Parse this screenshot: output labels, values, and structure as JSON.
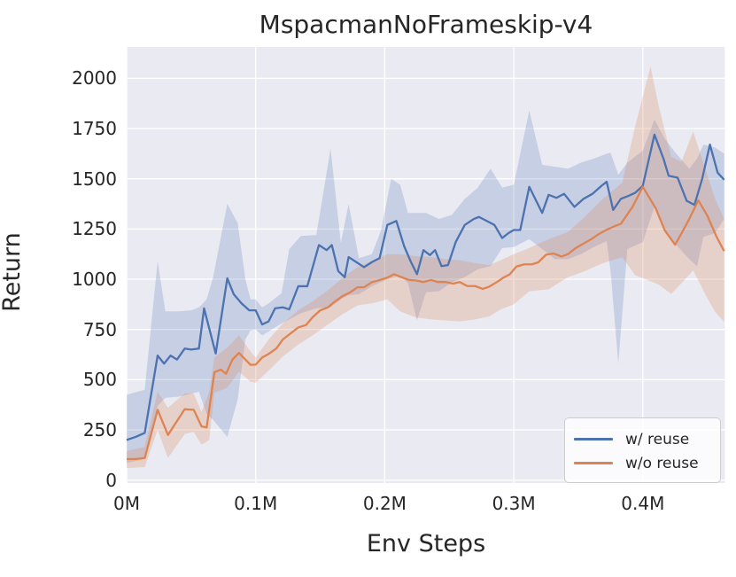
{
  "figure": {
    "title": "MspacmanNoFrameskip-v4",
    "xlabel": "Env Steps",
    "ylabel": "Return"
  },
  "chart_data": {
    "type": "line",
    "title": "MspacmanNoFrameskip-v4",
    "xlabel": "Env Steps",
    "ylabel": "Return",
    "x_unit": "millions of env steps",
    "xlim": [
      0,
      0.4634
    ],
    "ylim": [
      -15,
      2155
    ],
    "grid": true,
    "background": "#eaeaf2",
    "grid_color": "#ffffff",
    "legend_position": "lower right",
    "x_ticks": [
      0,
      0.1,
      0.2,
      0.3,
      0.4
    ],
    "x_tick_labels": [
      "0M",
      "0.1M",
      "0.2M",
      "0.3M",
      "0.4M"
    ],
    "y_ticks": [
      0,
      250,
      500,
      750,
      1000,
      1250,
      1500,
      1750,
      2000
    ],
    "y_tick_labels": [
      "0",
      "250",
      "500",
      "750",
      "1000",
      "1250",
      "1500",
      "1750",
      "2000"
    ],
    "series": [
      {
        "name": "w/ reuse",
        "color": "#4c72b0",
        "band_alpha": 0.22,
        "x": [
          0.0,
          0.007,
          0.014,
          0.024,
          0.029,
          0.034,
          0.039,
          0.045,
          0.05,
          0.056,
          0.06,
          0.069,
          0.078,
          0.083,
          0.089,
          0.095,
          0.1,
          0.105,
          0.11,
          0.115,
          0.121,
          0.126,
          0.133,
          0.14,
          0.149,
          0.155,
          0.159,
          0.164,
          0.169,
          0.172,
          0.178,
          0.184,
          0.19,
          0.196,
          0.202,
          0.209,
          0.215,
          0.22,
          0.225,
          0.23,
          0.235,
          0.239,
          0.244,
          0.249,
          0.255,
          0.262,
          0.269,
          0.273,
          0.279,
          0.285,
          0.291,
          0.296,
          0.3,
          0.305,
          0.312,
          0.322,
          0.327,
          0.333,
          0.339,
          0.347,
          0.354,
          0.361,
          0.368,
          0.372,
          0.377,
          0.383,
          0.389,
          0.394,
          0.4,
          0.409,
          0.416,
          0.42,
          0.427,
          0.434,
          0.44,
          0.446,
          0.452,
          0.458,
          0.463
        ],
        "y": [
          200,
          215,
          235,
          620,
          580,
          620,
          600,
          655,
          650,
          655,
          855,
          630,
          1005,
          925,
          880,
          845,
          845,
          775,
          790,
          855,
          860,
          850,
          965,
          965,
          1170,
          1145,
          1170,
          1040,
          1010,
          1110,
          1085,
          1060,
          1085,
          1105,
          1270,
          1290,
          1165,
          1090,
          1025,
          1145,
          1120,
          1145,
          1065,
          1070,
          1185,
          1270,
          1300,
          1310,
          1290,
          1270,
          1205,
          1230,
          1245,
          1245,
          1460,
          1330,
          1420,
          1405,
          1425,
          1360,
          1400,
          1425,
          1465,
          1485,
          1345,
          1400,
          1415,
          1430,
          1465,
          1720,
          1600,
          1515,
          1505,
          1390,
          1370,
          1500,
          1670,
          1530,
          1495
        ],
        "band": {
          "x": [
            0.0,
            0.014,
            0.024,
            0.03,
            0.04,
            0.05,
            0.056,
            0.062,
            0.067,
            0.078,
            0.086,
            0.092,
            0.096,
            0.1,
            0.105,
            0.11,
            0.12,
            0.126,
            0.135,
            0.147,
            0.158,
            0.166,
            0.172,
            0.18,
            0.19,
            0.197,
            0.205,
            0.212,
            0.218,
            0.225,
            0.232,
            0.242,
            0.252,
            0.262,
            0.272,
            0.282,
            0.291,
            0.3,
            0.312,
            0.322,
            0.332,
            0.342,
            0.352,
            0.362,
            0.372,
            0.375,
            0.381,
            0.388,
            0.4,
            0.409,
            0.417,
            0.424,
            0.436,
            0.442,
            0.447,
            0.456,
            0.463
          ],
          "lo": [
            85,
            105,
            370,
            410,
            415,
            430,
            440,
            330,
            300,
            215,
            400,
            700,
            745,
            750,
            720,
            740,
            780,
            800,
            830,
            855,
            860,
            900,
            920,
            925,
            965,
            985,
            1005,
            1020,
            980,
            795,
            935,
            940,
            985,
            1010,
            1050,
            1065,
            1155,
            1160,
            1200,
            1150,
            1100,
            1100,
            1125,
            1160,
            1190,
            1040,
            580,
            1150,
            1185,
            1360,
            1250,
            1185,
            1100,
            1065,
            1210,
            1230,
            1300
          ],
          "hi": [
            425,
            450,
            1090,
            840,
            840,
            845,
            860,
            900,
            1010,
            1375,
            1280,
            1000,
            900,
            900,
            860,
            880,
            930,
            1150,
            1215,
            1220,
            1650,
            1180,
            1375,
            1105,
            1125,
            1240,
            1500,
            1470,
            1330,
            1330,
            1330,
            1300,
            1320,
            1400,
            1455,
            1550,
            1456,
            1470,
            1840,
            1570,
            1560,
            1550,
            1580,
            1600,
            1625,
            1630,
            1520,
            1580,
            1640,
            1795,
            1700,
            1640,
            1550,
            1600,
            1670,
            1655,
            1625
          ]
        }
      },
      {
        "name": "w/o reuse",
        "color": "#dd8452",
        "band_alpha": 0.25,
        "x": [
          0.0,
          0.007,
          0.014,
          0.024,
          0.032,
          0.045,
          0.052,
          0.058,
          0.062,
          0.068,
          0.073,
          0.077,
          0.082,
          0.087,
          0.092,
          0.096,
          0.1,
          0.105,
          0.11,
          0.116,
          0.121,
          0.127,
          0.133,
          0.139,
          0.144,
          0.15,
          0.156,
          0.161,
          0.167,
          0.173,
          0.179,
          0.184,
          0.19,
          0.196,
          0.202,
          0.207,
          0.213,
          0.219,
          0.224,
          0.23,
          0.236,
          0.241,
          0.247,
          0.253,
          0.258,
          0.264,
          0.27,
          0.276,
          0.281,
          0.287,
          0.292,
          0.297,
          0.302,
          0.308,
          0.314,
          0.319,
          0.325,
          0.331,
          0.337,
          0.342,
          0.348,
          0.354,
          0.36,
          0.365,
          0.371,
          0.377,
          0.383,
          0.392,
          0.4,
          0.41,
          0.417,
          0.425,
          0.43,
          0.436,
          0.443,
          0.45,
          0.457,
          0.463
        ],
        "y": [
          105,
          105,
          110,
          350,
          225,
          353,
          350,
          268,
          262,
          537,
          550,
          529,
          600,
          633,
          600,
          574,
          575,
          610,
          628,
          655,
          700,
          730,
          760,
          772,
          810,
          845,
          860,
          887,
          915,
          934,
          960,
          960,
          985,
          996,
          1008,
          1025,
          1010,
          996,
          994,
          986,
          996,
          986,
          986,
          978,
          986,
          966,
          966,
          952,
          963,
          986,
          1008,
          1025,
          1063,
          1074,
          1074,
          1084,
          1122,
          1128,
          1113,
          1125,
          1155,
          1177,
          1199,
          1221,
          1243,
          1261,
          1276,
          1360,
          1460,
          1353,
          1243,
          1172,
          1228,
          1300,
          1393,
          1316,
          1213,
          1140
        ],
        "band": {
          "x": [
            0.0,
            0.014,
            0.024,
            0.032,
            0.045,
            0.052,
            0.058,
            0.064,
            0.068,
            0.078,
            0.087,
            0.096,
            0.1,
            0.11,
            0.121,
            0.133,
            0.144,
            0.156,
            0.167,
            0.179,
            0.19,
            0.202,
            0.212,
            0.224,
            0.236,
            0.247,
            0.258,
            0.27,
            0.281,
            0.29,
            0.3,
            0.312,
            0.327,
            0.342,
            0.355,
            0.369,
            0.384,
            0.394,
            0.406,
            0.412,
            0.422,
            0.43,
            0.439,
            0.45,
            0.456,
            0.463
          ],
          "lo": [
            60,
            65,
            250,
            110,
            230,
            240,
            176,
            200,
            435,
            460,
            540,
            490,
            485,
            545,
            615,
            675,
            720,
            775,
            825,
            870,
            880,
            900,
            840,
            810,
            800,
            795,
            790,
            800,
            815,
            850,
            875,
            940,
            950,
            1010,
            1040,
            1080,
            1110,
            1020,
            990,
            975,
            927,
            980,
            1044,
            905,
            838,
            787
          ],
          "hi": [
            145,
            165,
            440,
            360,
            432,
            430,
            340,
            440,
            610,
            660,
            720,
            640,
            610,
            700,
            780,
            845,
            890,
            945,
            1005,
            1060,
            1090,
            1125,
            1125,
            1115,
            1110,
            1100,
            1095,
            1080,
            1070,
            1095,
            1125,
            1155,
            1200,
            1235,
            1310,
            1400,
            1480,
            1760,
            2059,
            1870,
            1610,
            1585,
            1735,
            1520,
            1400,
            1300
          ]
        }
      }
    ]
  }
}
